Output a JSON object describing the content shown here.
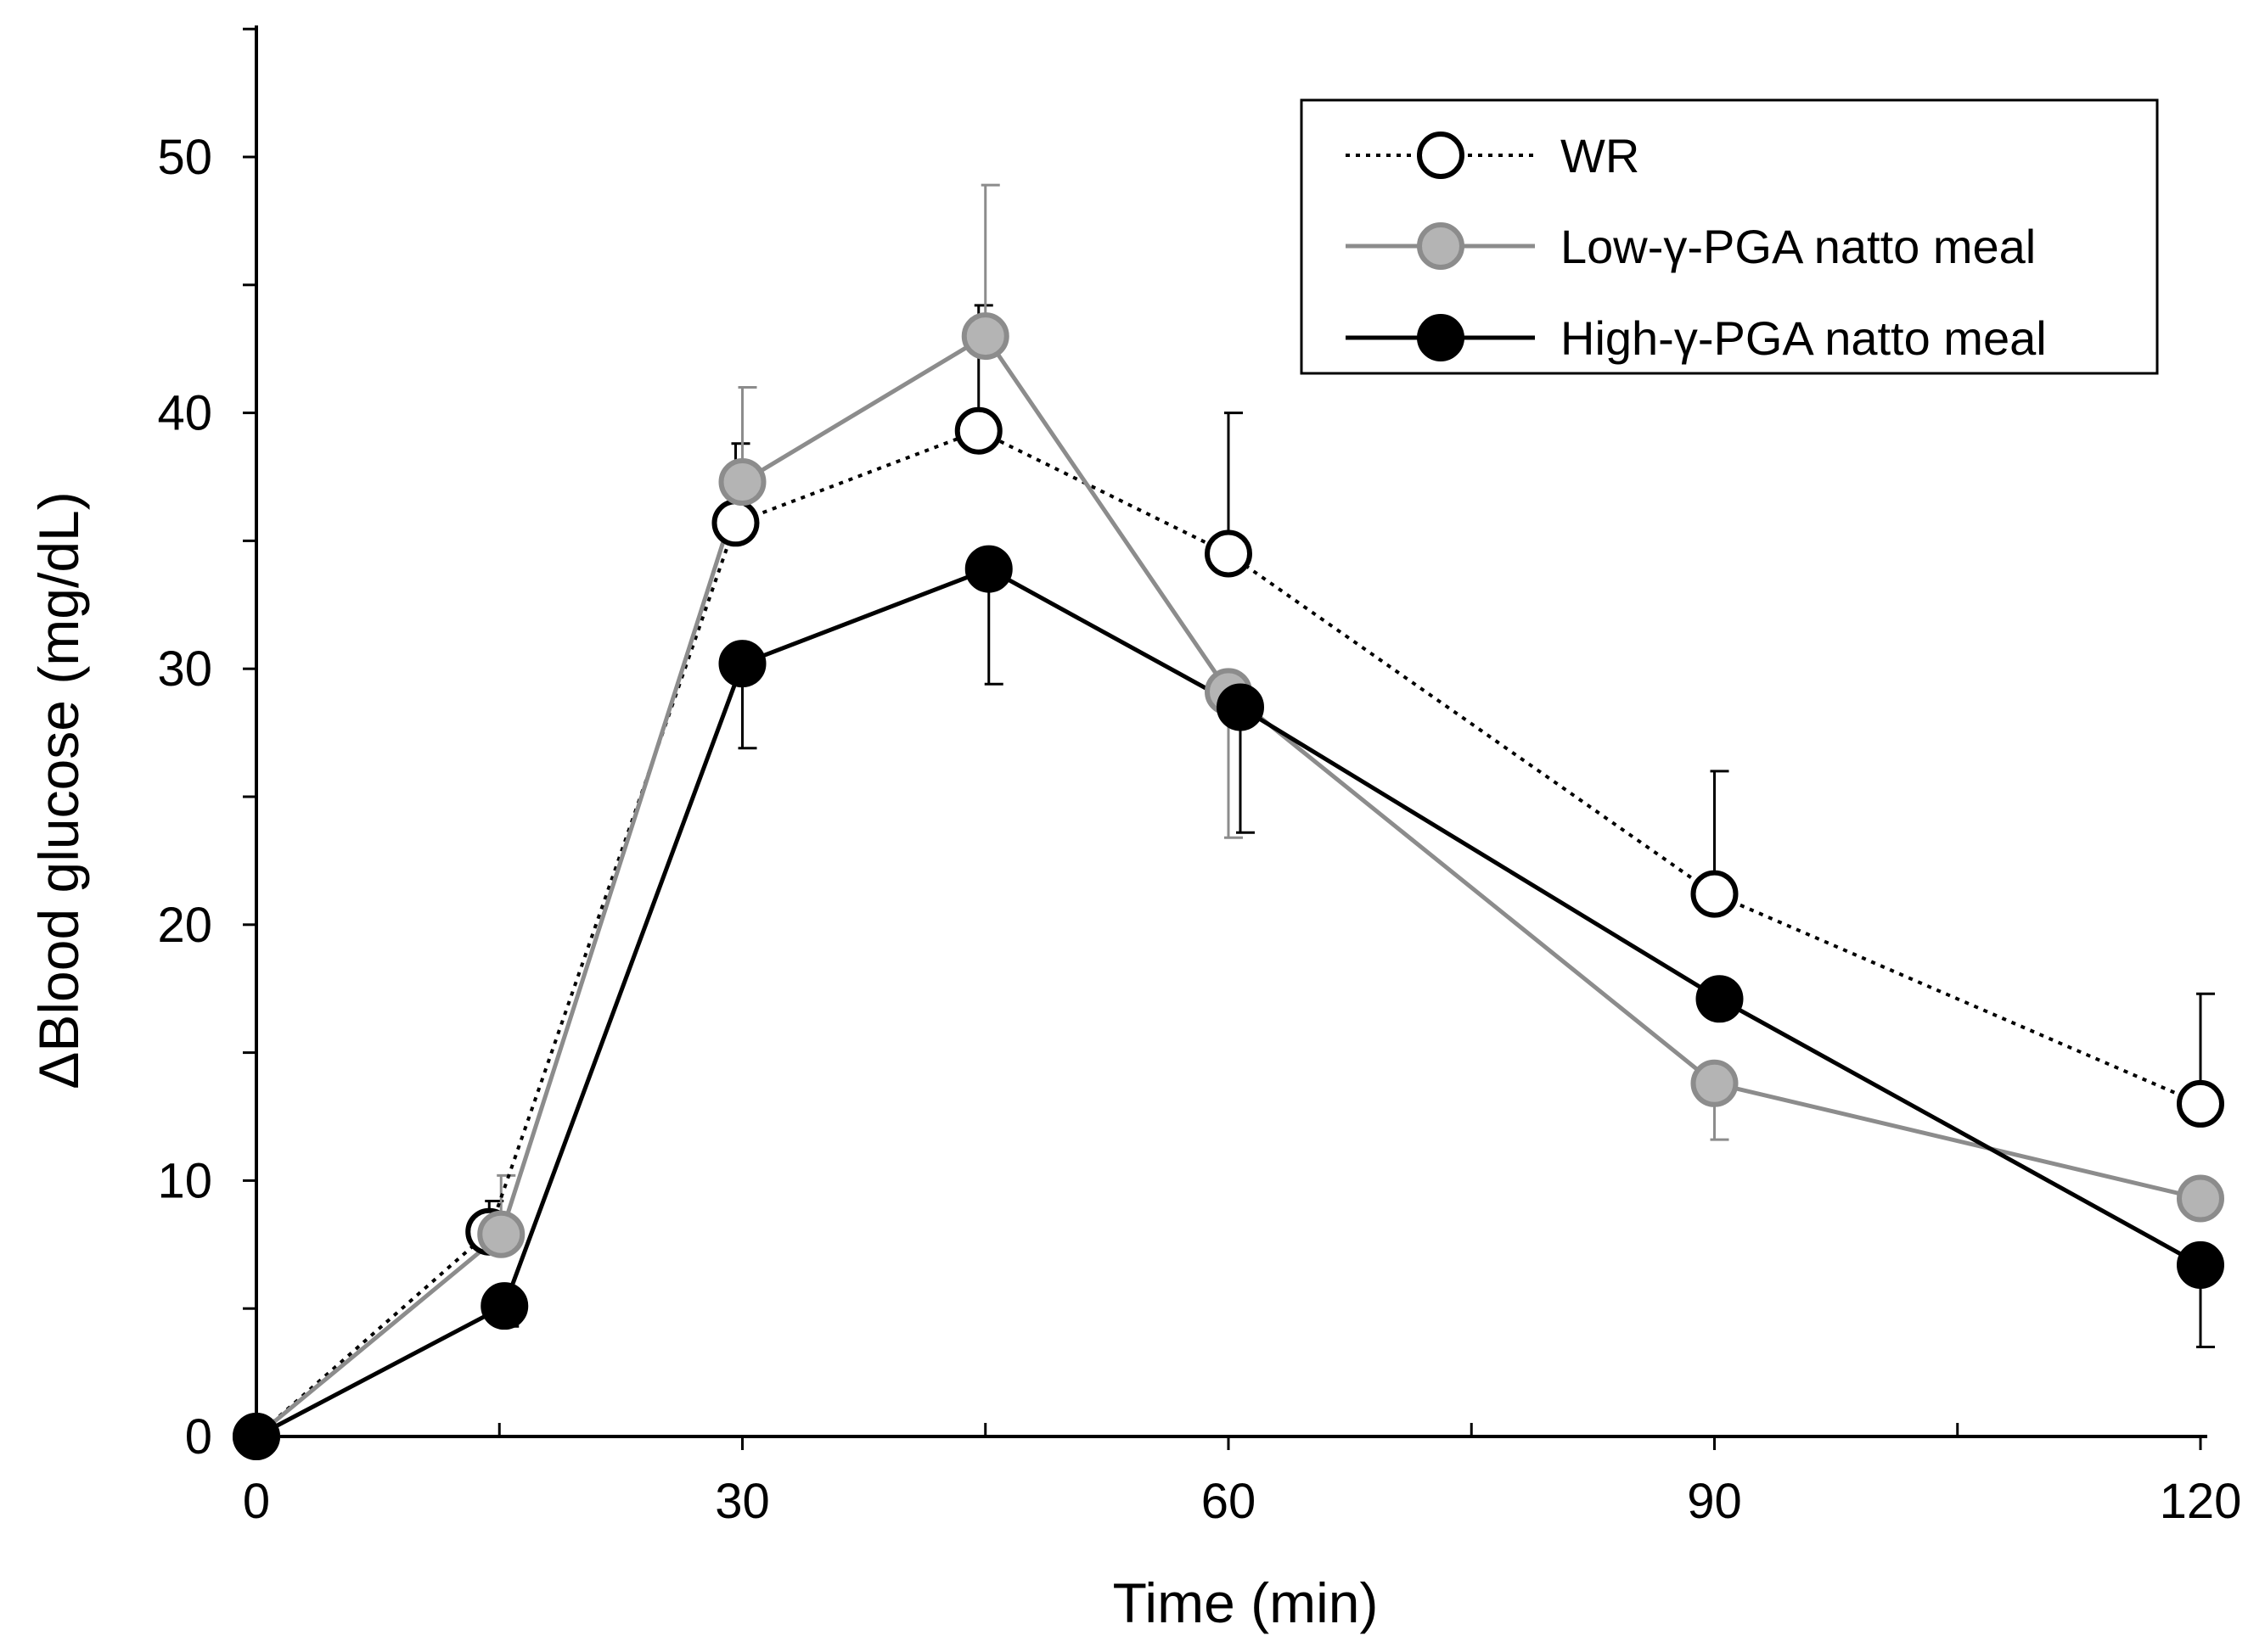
{
  "chart_data": {
    "type": "line",
    "title": "",
    "xlabel": "Time (min)",
    "ylabel": "ΔBlood glucose (mg/dL)",
    "xlim": [
      0,
      120
    ],
    "ylim": [
      0,
      55
    ],
    "x_ticks": [
      0,
      30,
      60,
      90,
      120
    ],
    "x_tick_labels": [
      "0",
      "30",
      "60",
      "90",
      "120"
    ],
    "x_minor_ticks": [
      15,
      45,
      75,
      105
    ],
    "y_ticks": [
      0,
      10,
      20,
      30,
      40,
      50
    ],
    "y_tick_labels": [
      "0",
      "10",
      "20",
      "30",
      "40",
      "50"
    ],
    "y_minor_ticks": [
      5,
      15,
      25,
      35,
      45,
      55
    ],
    "grid": false,
    "legend_position": "top-right",
    "series": [
      {
        "name": "WR",
        "style": "dotted",
        "line_color": "#000000",
        "marker_fill": "#ffffff",
        "marker_stroke": "#000000",
        "x": [
          0,
          15,
          30,
          45,
          60,
          90,
          120
        ],
        "values": [
          0,
          8.0,
          35.7,
          39.3,
          34.5,
          21.2,
          13.0
        ],
        "error_upper": [
          0,
          9.2,
          38.8,
          44.2,
          40.0,
          26.0,
          17.3
        ]
      },
      {
        "name": "Low-γ-PGA natto meal",
        "style": "solid",
        "line_color": "#8c8c8c",
        "marker_fill": "#b4b4b4",
        "marker_stroke": "#8c8c8c",
        "x": [
          0,
          15,
          30,
          45,
          60,
          90,
          120
        ],
        "values": [
          0,
          7.9,
          37.3,
          43.0,
          29.1,
          13.8,
          9.3
        ],
        "error_upper": [
          0,
          10.2,
          41.0,
          48.9,
          29.1,
          13.8,
          9.3
        ],
        "error_lower": [
          0,
          7.9,
          37.3,
          43.0,
          23.4,
          11.6,
          9.3
        ]
      },
      {
        "name": "High-γ-PGA natto meal",
        "style": "solid",
        "line_color": "#000000",
        "marker_fill": "#000000",
        "marker_stroke": "#000000",
        "x": [
          0,
          15,
          30,
          45,
          60,
          90,
          120
        ],
        "values": [
          0,
          5.1,
          30.2,
          33.9,
          28.5,
          17.1,
          6.7
        ],
        "error_lower": [
          0,
          4.3,
          26.9,
          29.4,
          23.6,
          17.1,
          3.5
        ]
      }
    ]
  }
}
